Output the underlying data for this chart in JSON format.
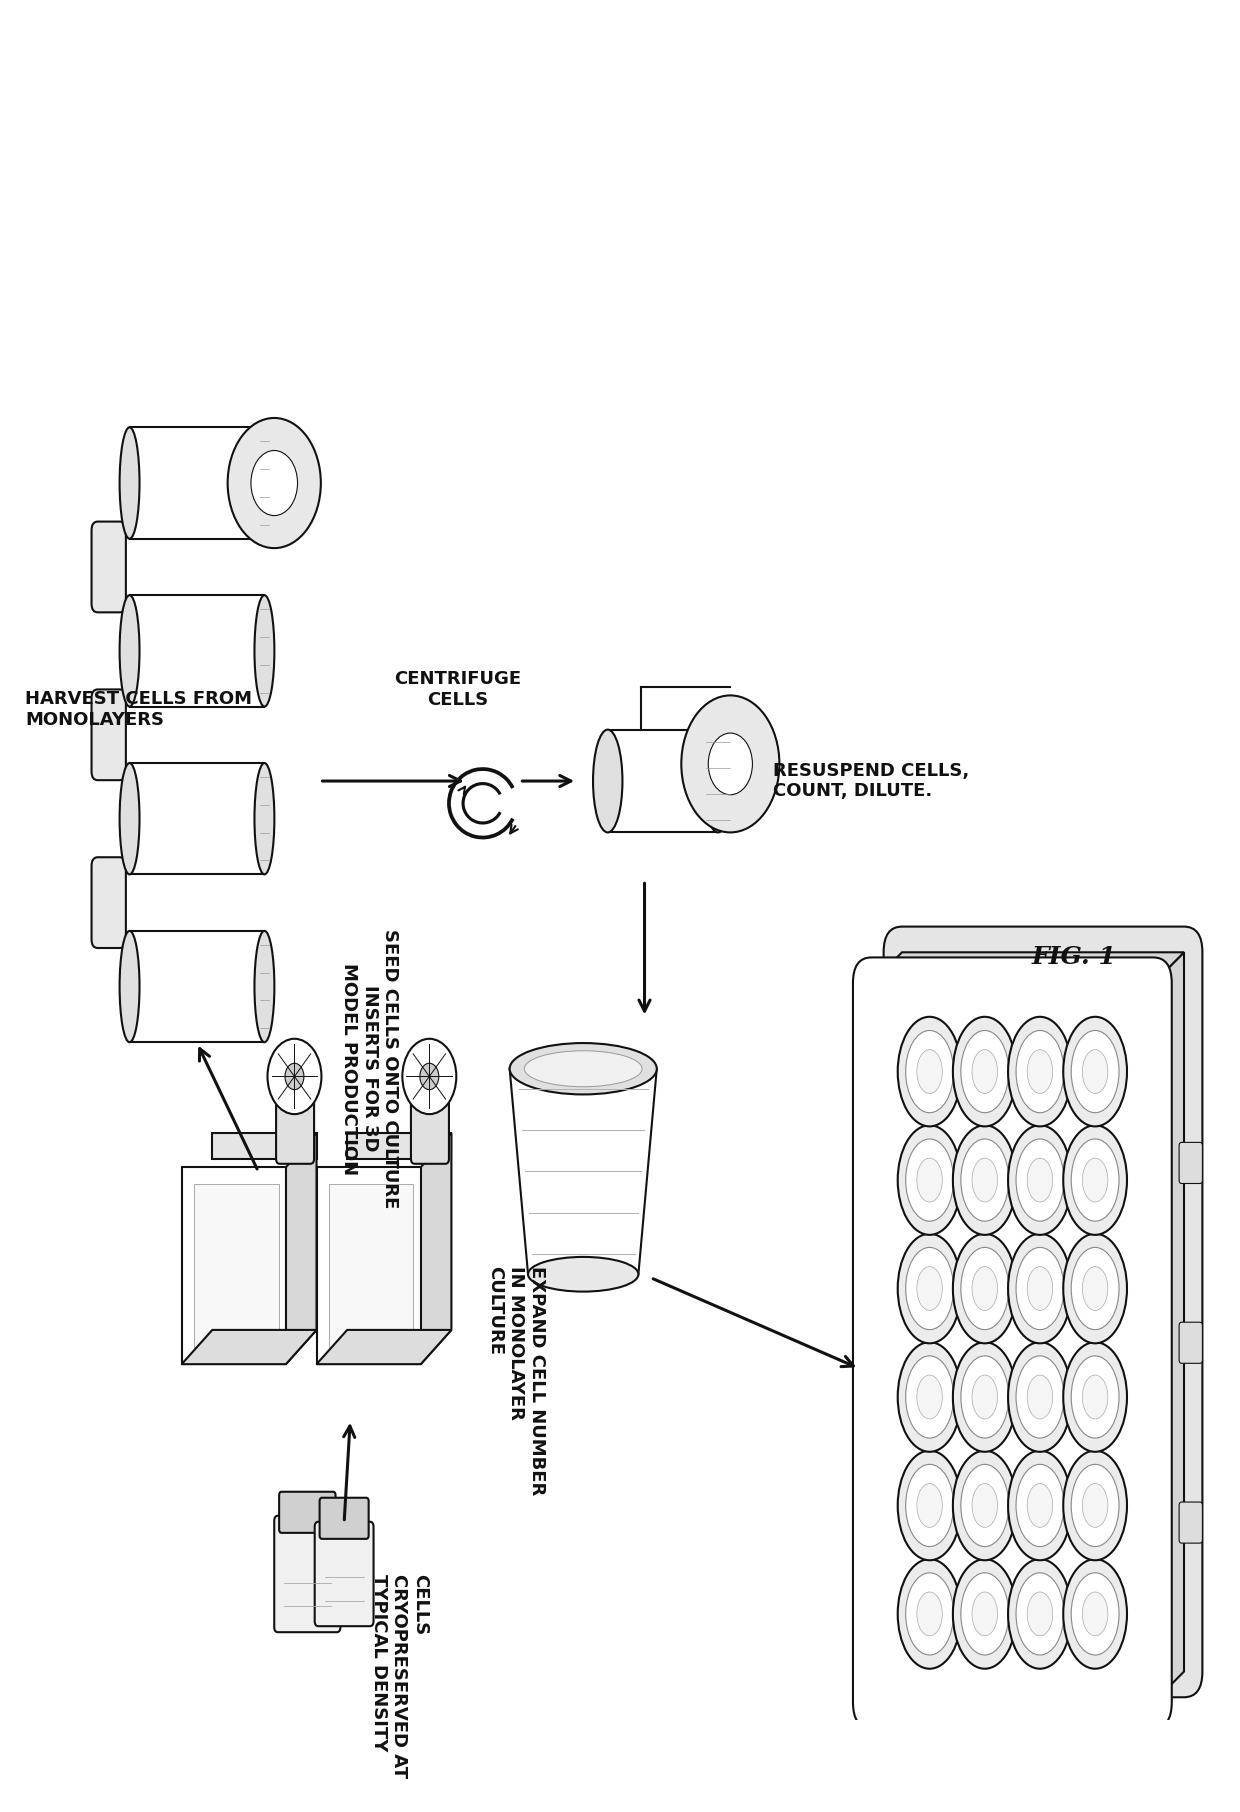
{
  "background_color": "#ffffff",
  "line_color": "#111111",
  "text_color": "#111111",
  "fig_label": "FIG. 1",
  "font_size": 13,
  "fig_label_size": 18,
  "lw": 1.5,
  "labels": {
    "cryo": "CELLS\nCRYOPRESERVED AT\nTYPICAL DENSITY",
    "expand": "EXPAND CELL NUMBER\nIN MONOLAYER\nCULTURE",
    "harvest": "HARVEST CELLS FROM\nMONOLAYERS",
    "centrifuge": "CENTRIFUGE\nCELLS",
    "resuspend": "RESUSPEND CELLS,\nCOUNT, DILUTE.",
    "seed": "SEED CELLS ONTO CULTURE\nINSERTS FOR 3D\nMODEL PRODUCTION"
  }
}
